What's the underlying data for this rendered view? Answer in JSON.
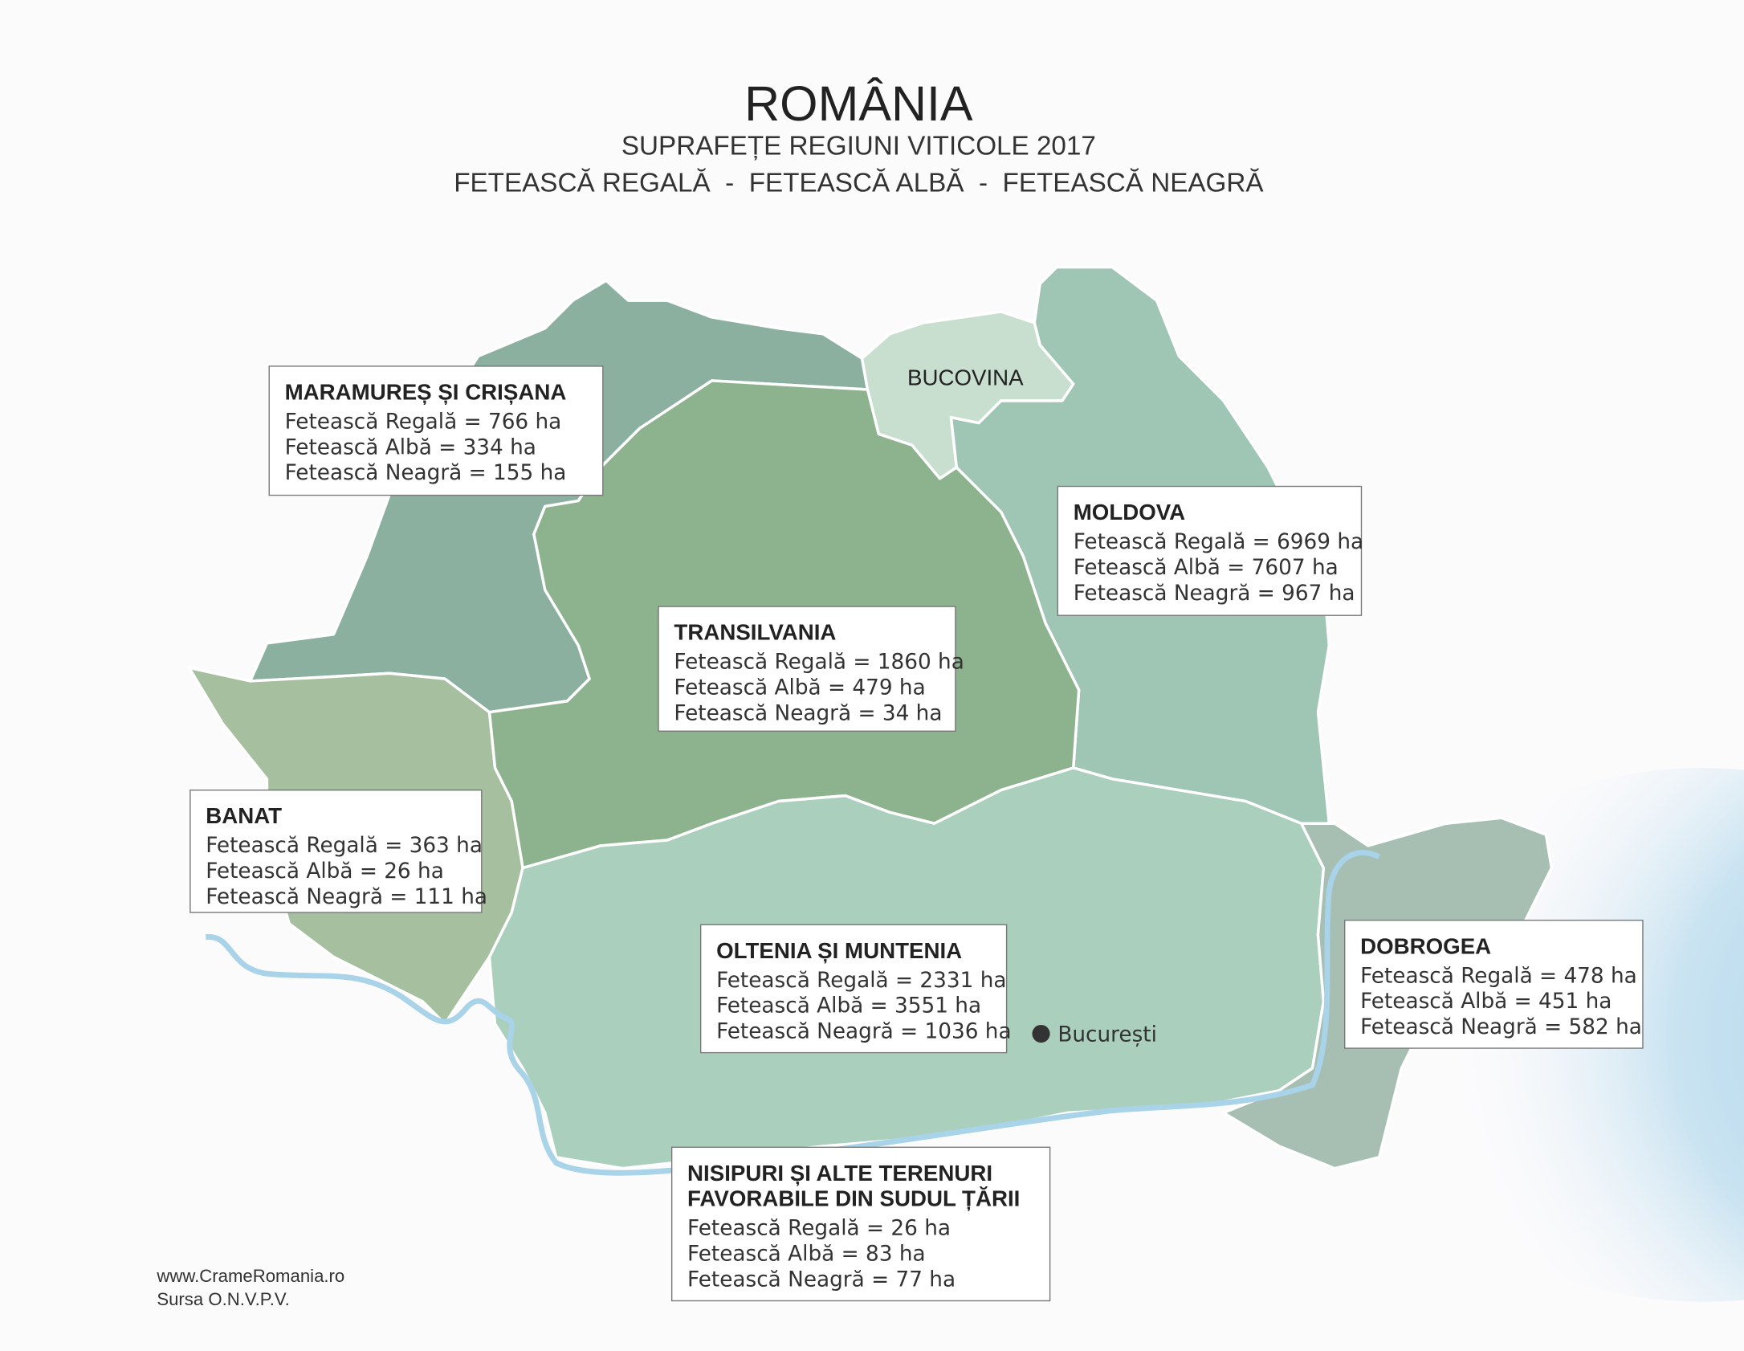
{
  "header": {
    "title": "ROMÂNIA",
    "subtitle": "SUPRAFEȚE REGIUNI VITICOLE 2017",
    "varieties": "FETEASCĂ REGALĂ  -  FETEASCĂ ALBĂ  -  FETEASCĂ NEAGRĂ"
  },
  "map_labels": {
    "bucovina": "BUCOVINA",
    "capital": "București"
  },
  "regions": [
    {
      "title_lines": [
        "MARAMUREȘ ȘI CRIȘANA"
      ],
      "lines": [
        "Fetească Regală = 766 ha",
        "Fetească Albă = 334 ha",
        "Fetească Neagră = 155 ha"
      ]
    },
    {
      "title_lines": [
        "MOLDOVA"
      ],
      "lines": [
        "Fetească Regală = 6969 ha",
        "Fetească Albă = 7607 ha",
        "Fetească Neagră = 967 ha"
      ]
    },
    {
      "title_lines": [
        "TRANSILVANIA"
      ],
      "lines": [
        "Fetească Regală = 1860 ha",
        "Fetească Albă =  479 ha",
        "Fetească Neagră = 34 ha"
      ]
    },
    {
      "title_lines": [
        "BANAT"
      ],
      "lines": [
        "Fetească Regală = 363 ha",
        "Fetească Albă = 26 ha",
        "Fetească Neagră = 111 ha"
      ]
    },
    {
      "title_lines": [
        "OLTENIA ȘI MUNTENIA"
      ],
      "lines": [
        "Fetească Regală = 2331 ha",
        "Fetească Albă = 3551 ha",
        "Fetească Neagră = 1036 ha"
      ]
    },
    {
      "title_lines": [
        "DOBROGEA"
      ],
      "lines": [
        "Fetească Regală = 478 ha",
        "Fetească Albă = 451 ha",
        "Fetească Neagră = 582 ha"
      ]
    },
    {
      "title_lines": [
        "NISIPURI ȘI ALTE TERENURI",
        "FAVORABILE DIN SUDUL ȚĂRII"
      ],
      "lines": [
        "Fetească Regală = 26 ha",
        "Fetească Albă = 83 ha",
        "Fetească Neagră = 77 ha"
      ]
    }
  ],
  "footer": {
    "website": "www.CrameRomania.ro",
    "source": "Sursa O.N.V.P.V."
  }
}
